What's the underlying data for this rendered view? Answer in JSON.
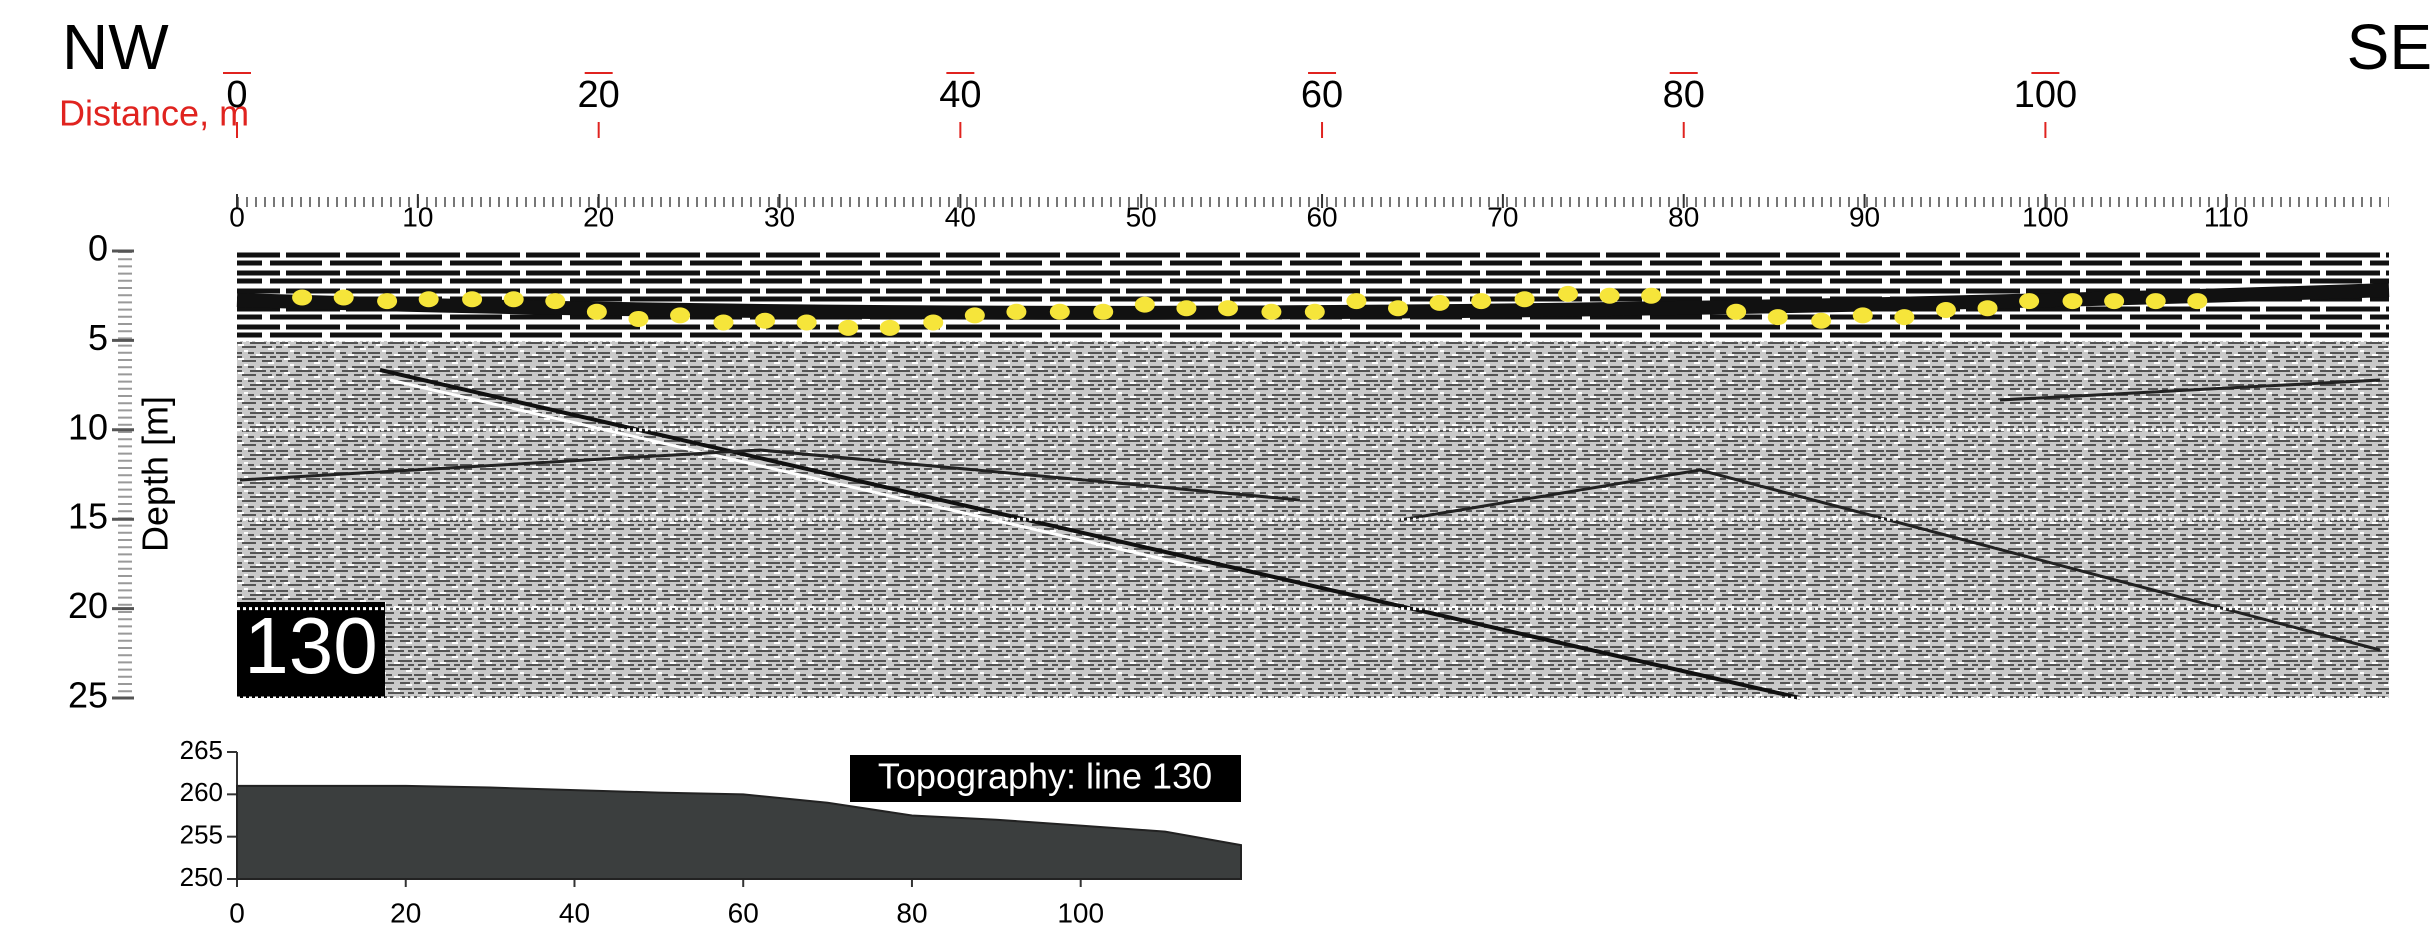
{
  "chart_data": [
    {
      "type": "scatter",
      "left_label": "NW",
      "right_label": "SE",
      "x2label": "Distance, m",
      "x2ticks": [
        0,
        20,
        40,
        60,
        80,
        100
      ],
      "ylabel": "Depth [m]",
      "badge": "130",
      "x": [
        3.6,
        5.9,
        8.3,
        10.6,
        13.0,
        15.3,
        17.6,
        19.9,
        22.2,
        24.5,
        26.9,
        29.2,
        31.5,
        33.8,
        36.1,
        38.5,
        40.8,
        43.1,
        45.5,
        47.9,
        50.2,
        52.5,
        54.8,
        57.2,
        59.6,
        61.9,
        64.2,
        66.5,
        68.8,
        71.2,
        73.6,
        75.9,
        78.2,
        82.9,
        85.2,
        87.6,
        89.9,
        92.2,
        94.5,
        96.8,
        99.1,
        101.5,
        103.8,
        106.1,
        108.4
      ],
      "values": [
        2.6,
        2.6,
        2.8,
        2.7,
        2.7,
        2.7,
        2.8,
        3.4,
        3.8,
        3.6,
        4.0,
        3.9,
        4.0,
        4.3,
        4.3,
        4.0,
        3.6,
        3.4,
        3.4,
        3.4,
        3.0,
        3.2,
        3.2,
        3.4,
        3.4,
        2.8,
        3.2,
        2.9,
        2.8,
        2.7,
        2.4,
        2.5,
        2.5,
        3.4,
        3.7,
        3.9,
        3.6,
        3.7,
        3.3,
        3.2,
        2.8,
        2.8,
        2.8,
        2.8,
        2.8
      ],
      "color": "#f6e53a",
      "xlim": [
        0,
        119
      ],
      "xticks": [
        0,
        10,
        20,
        30,
        40,
        50,
        60,
        70,
        80,
        90,
        100,
        110
      ],
      "ylim": [
        0,
        25
      ],
      "yticks": [
        0,
        5,
        10,
        15,
        20,
        25
      ],
      "y_inverted": true,
      "grid": true
    },
    {
      "type": "area",
      "title": "Topography: line 130",
      "x": [
        0,
        10,
        20,
        30,
        40,
        50,
        60,
        70,
        80,
        90,
        100,
        110,
        119
      ],
      "values": [
        261,
        261,
        261,
        260.8,
        260.5,
        260.2,
        260,
        259,
        257.5,
        257,
        256.3,
        255.6,
        254
      ],
      "color": "#3b3e3e",
      "xlim": [
        0,
        119
      ],
      "xticks": [
        0,
        20,
        40,
        60,
        80,
        100
      ],
      "ylim": [
        250,
        265
      ],
      "yticks": [
        250,
        255,
        260,
        265
      ]
    }
  ]
}
